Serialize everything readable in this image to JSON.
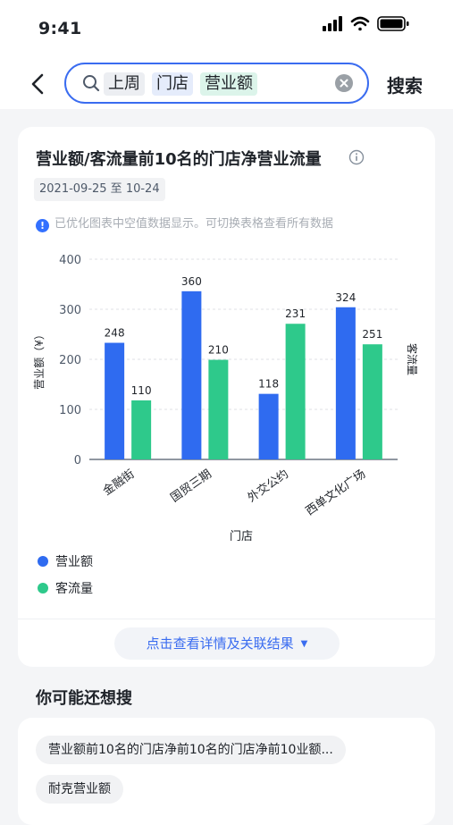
{
  "status_bar": {
    "time": "9:41"
  },
  "search": {
    "tags": [
      "上周",
      "门店",
      "营业额"
    ],
    "button_label": "搜索"
  },
  "result_card": {
    "title": "营业额/客流量前10名的门店净营业流量",
    "date_range": "2021-09-25 至 10-24",
    "notice": "已优化图表中空值数据显示。可切换表格查看所有数据",
    "details_label": "点击查看详情及关联结果"
  },
  "chart_data": {
    "type": "bar",
    "categories": [
      "金融街",
      "国贸三期",
      "外交公约",
      "西单文化广场"
    ],
    "series": [
      {
        "name": "营业额",
        "values": [
          248,
          360,
          118,
          324
        ],
        "color": "#2f6bf0"
      },
      {
        "name": "客流量",
        "values": [
          110,
          210,
          231,
          251
        ],
        "color": "#2ec98b"
      }
    ],
    "display_heights": [
      [
        233,
        336,
        131,
        304
      ],
      [
        118,
        199,
        271,
        230
      ]
    ],
    "xlabel": "门店",
    "ylabel": "营业额（¥）",
    "y2label": "客流量",
    "ylim": [
      0,
      400
    ],
    "yticks": [
      0,
      100,
      200,
      300,
      400
    ],
    "grid": true,
    "legend": "bottom-left"
  },
  "related": {
    "title": "你可能还想搜",
    "items": [
      "营业额前10名的门店净前10名的门店净前10业额...",
      "耐克营业额"
    ]
  }
}
